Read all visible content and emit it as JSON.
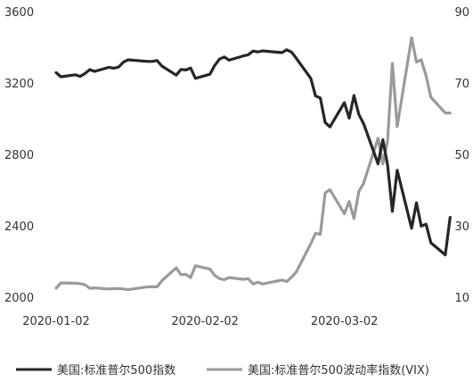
{
  "chart_data": {
    "type": "line",
    "title": "",
    "x_axis": {
      "tick_labels": [
        "2020-01-02",
        "2020-02-02",
        "2020-03-02"
      ],
      "tick_dates": [
        "2020-01-02",
        "2020-02-02",
        "2020-03-02"
      ],
      "range": [
        "2020-01-02",
        "2020-03-23"
      ]
    },
    "y_left": {
      "min": 2000,
      "max": 3600,
      "ticks": [
        2000,
        2400,
        2800,
        3200,
        3600
      ]
    },
    "y_right": {
      "min": 10,
      "max": 90,
      "ticks": [
        10,
        30,
        50,
        70,
        90
      ]
    },
    "grid": false,
    "legend_position": "bottom",
    "series": [
      {
        "name": "美国:标准普尔500指数",
        "axis": "left",
        "color": "#262626",
        "points": [
          [
            "2020-01-02",
            3258
          ],
          [
            "2020-01-03",
            3235
          ],
          [
            "2020-01-06",
            3246
          ],
          [
            "2020-01-07",
            3237
          ],
          [
            "2020-01-08",
            3253
          ],
          [
            "2020-01-09",
            3275
          ],
          [
            "2020-01-10",
            3265
          ],
          [
            "2020-01-13",
            3288
          ],
          [
            "2020-01-14",
            3283
          ],
          [
            "2020-01-15",
            3289
          ],
          [
            "2020-01-16",
            3317
          ],
          [
            "2020-01-17",
            3330
          ],
          [
            "2020-01-21",
            3321
          ],
          [
            "2020-01-22",
            3321
          ],
          [
            "2020-01-23",
            3326
          ],
          [
            "2020-01-24",
            3295
          ],
          [
            "2020-01-27",
            3244
          ],
          [
            "2020-01-28",
            3276
          ],
          [
            "2020-01-29",
            3273
          ],
          [
            "2020-01-30",
            3284
          ],
          [
            "2020-01-31",
            3226
          ],
          [
            "2020-02-03",
            3249
          ],
          [
            "2020-02-04",
            3298
          ],
          [
            "2020-02-05",
            3334
          ],
          [
            "2020-02-06",
            3346
          ],
          [
            "2020-02-07",
            3328
          ],
          [
            "2020-02-10",
            3352
          ],
          [
            "2020-02-11",
            3358
          ],
          [
            "2020-02-12",
            3379
          ],
          [
            "2020-02-13",
            3374
          ],
          [
            "2020-02-14",
            3380
          ],
          [
            "2020-02-18",
            3370
          ],
          [
            "2020-02-19",
            3386
          ],
          [
            "2020-02-20",
            3373
          ],
          [
            "2020-02-21",
            3338
          ],
          [
            "2020-02-24",
            3226
          ],
          [
            "2020-02-25",
            3128
          ],
          [
            "2020-02-26",
            3116
          ],
          [
            "2020-02-27",
            2979
          ],
          [
            "2020-02-28",
            2954
          ],
          [
            "2020-03-02",
            3090
          ],
          [
            "2020-03-03",
            3003
          ],
          [
            "2020-03-04",
            3130
          ],
          [
            "2020-03-05",
            3024
          ],
          [
            "2020-03-06",
            2972
          ],
          [
            "2020-03-09",
            2747
          ],
          [
            "2020-03-10",
            2882
          ],
          [
            "2020-03-11",
            2741
          ],
          [
            "2020-03-12",
            2481
          ],
          [
            "2020-03-13",
            2711
          ],
          [
            "2020-03-16",
            2386
          ],
          [
            "2020-03-17",
            2529
          ],
          [
            "2020-03-18",
            2398
          ],
          [
            "2020-03-19",
            2409
          ],
          [
            "2020-03-20",
            2305
          ],
          [
            "2020-03-23",
            2237
          ],
          [
            "2020-03-24",
            2447
          ]
        ]
      },
      {
        "name": "美国:标准普尔500波动率指数(VIX)",
        "axis": "right",
        "color": "#9a9a9a",
        "points": [
          [
            "2020-01-02",
            12.5
          ],
          [
            "2020-01-03",
            14.0
          ],
          [
            "2020-01-06",
            13.9
          ],
          [
            "2020-01-07",
            13.8
          ],
          [
            "2020-01-08",
            13.5
          ],
          [
            "2020-01-09",
            12.5
          ],
          [
            "2020-01-10",
            12.6
          ],
          [
            "2020-01-13",
            12.3
          ],
          [
            "2020-01-14",
            12.4
          ],
          [
            "2020-01-15",
            12.4
          ],
          [
            "2020-01-16",
            12.3
          ],
          [
            "2020-01-17",
            12.1
          ],
          [
            "2020-01-21",
            12.9
          ],
          [
            "2020-01-22",
            12.9
          ],
          [
            "2020-01-23",
            12.9
          ],
          [
            "2020-01-24",
            14.6
          ],
          [
            "2020-01-27",
            18.2
          ],
          [
            "2020-01-28",
            16.3
          ],
          [
            "2020-01-29",
            16.4
          ],
          [
            "2020-01-30",
            15.5
          ],
          [
            "2020-01-31",
            18.8
          ],
          [
            "2020-02-03",
            17.9
          ],
          [
            "2020-02-04",
            16.1
          ],
          [
            "2020-02-05",
            15.2
          ],
          [
            "2020-02-06",
            14.9
          ],
          [
            "2020-02-07",
            15.5
          ],
          [
            "2020-02-10",
            15.0
          ],
          [
            "2020-02-11",
            15.2
          ],
          [
            "2020-02-12",
            13.7
          ],
          [
            "2020-02-13",
            14.2
          ],
          [
            "2020-02-14",
            13.7
          ],
          [
            "2020-02-18",
            14.8
          ],
          [
            "2020-02-19",
            14.4
          ],
          [
            "2020-02-20",
            15.6
          ],
          [
            "2020-02-21",
            17.1
          ],
          [
            "2020-02-24",
            25.0
          ],
          [
            "2020-02-25",
            27.9
          ],
          [
            "2020-02-26",
            27.6
          ],
          [
            "2020-02-27",
            39.2
          ],
          [
            "2020-02-28",
            40.1
          ],
          [
            "2020-03-02",
            33.4
          ],
          [
            "2020-03-03",
            36.8
          ],
          [
            "2020-03-04",
            31.99
          ],
          [
            "2020-03-05",
            39.6
          ],
          [
            "2020-03-06",
            41.9
          ],
          [
            "2020-03-09",
            54.5
          ],
          [
            "2020-03-10",
            47.3
          ],
          [
            "2020-03-11",
            53.9
          ],
          [
            "2020-03-12",
            75.5
          ],
          [
            "2020-03-13",
            57.8
          ],
          [
            "2020-03-16",
            82.7
          ],
          [
            "2020-03-17",
            75.9
          ],
          [
            "2020-03-18",
            76.5
          ],
          [
            "2020-03-19",
            72.0
          ],
          [
            "2020-03-20",
            66.0
          ],
          [
            "2020-03-23",
            61.6
          ],
          [
            "2020-03-24",
            61.6
          ]
        ]
      }
    ]
  }
}
